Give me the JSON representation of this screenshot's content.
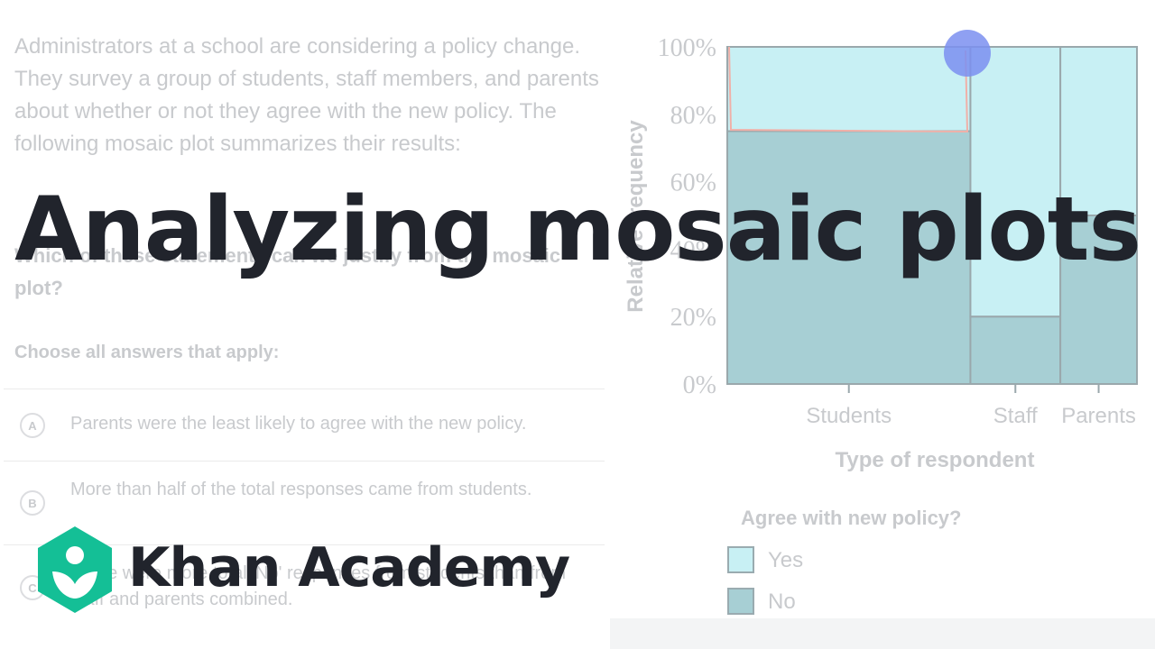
{
  "problem": {
    "text": "Administrators at a school are considering a policy change. They survey a group of students, staff members, and parents about whether or not they agree with the new policy. The following mosaic plot summarizes their results:"
  },
  "question": {
    "text": "Which of these statements can we justify from the mosaic plot?",
    "instruction": "Choose all answers that apply:"
  },
  "choices": [
    {
      "letter": "A",
      "text": "Parents were the least likely to agree with the new policy."
    },
    {
      "letter": "B",
      "text": "More than half of the total responses came from students."
    },
    {
      "letter": "C",
      "text": "There were more total 'No' responses from students than from staff and parents combined."
    }
  ],
  "chart_data": {
    "type": "mosaic",
    "ylabel": "Relative frequency",
    "xlabel": "Type of respondent",
    "y_ticks": [
      "0%",
      "20%",
      "40%",
      "60%",
      "80%",
      "100%"
    ],
    "categories": [
      "Students",
      "Staff",
      "Parents"
    ],
    "widths": [
      0.73,
      0.27,
      0.23
    ],
    "series": [
      {
        "name": "No",
        "values": [
          75,
          20,
          50
        ],
        "color": "#a7cfd4"
      },
      {
        "name": "Yes",
        "values": [
          25,
          80,
          50
        ],
        "color": "#c8f0f4"
      }
    ],
    "legend_title": "Agree with new policy?",
    "ylim": [
      0,
      100
    ]
  },
  "legend": {
    "title": "Agree with new policy?",
    "yes": "Yes",
    "no": "No"
  },
  "overlay": {
    "title": "Analyzing mosaic plots",
    "brand": "Khan Academy"
  },
  "colors": {
    "brand_green": "#14bf96",
    "title_text": "#21242c",
    "cursor": "#7b8ff0"
  }
}
